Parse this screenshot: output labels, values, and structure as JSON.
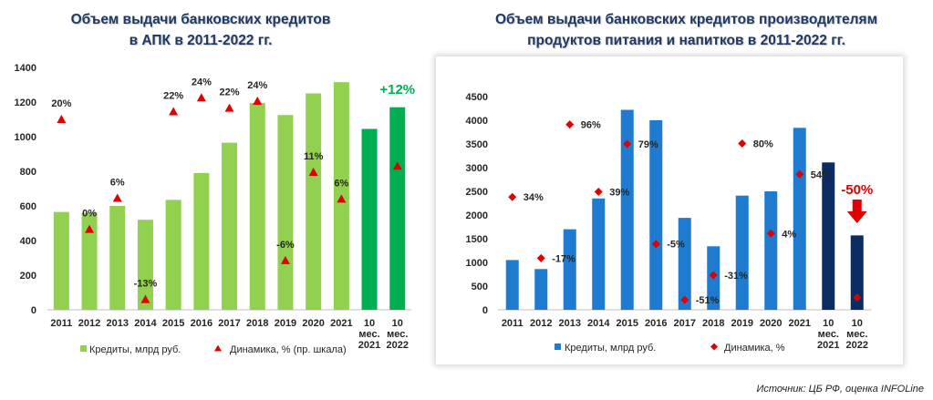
{
  "chart_data": [
    {
      "type": "bar",
      "title": "Объем выдачи банковских кредитов в АПК в 2011-2022 гг.",
      "title_lines": [
        "Объем выдачи банковских кредитов",
        "в АПК в 2011-2022 гг."
      ],
      "categories": [
        "2011",
        "2012",
        "2013",
        "2014",
        "2015",
        "2016",
        "2017",
        "2018",
        "2019",
        "2020",
        "2021",
        "10 мес. 2021",
        "10 мес. 2022"
      ],
      "category_lines": [
        [
          "2011"
        ],
        [
          "2012"
        ],
        [
          "2013"
        ],
        [
          "2014"
        ],
        [
          "2015"
        ],
        [
          "2016"
        ],
        [
          "2017"
        ],
        [
          "2018"
        ],
        [
          "2019"
        ],
        [
          "2020"
        ],
        [
          "2021"
        ],
        [
          "10",
          "мес.",
          "2021"
        ],
        [
          "10",
          "мес.",
          "2022"
        ]
      ],
      "series": [
        {
          "name": "Кредиты, млрд руб.",
          "type": "bar",
          "axis": "left",
          "values": [
            565,
            560,
            600,
            520,
            635,
            790,
            965,
            1195,
            1125,
            1250,
            1315,
            1045,
            1170
          ],
          "colors": [
            "#92d050",
            "#92d050",
            "#92d050",
            "#92d050",
            "#92d050",
            "#92d050",
            "#92d050",
            "#92d050",
            "#92d050",
            "#92d050",
            "#92d050",
            "#00b050",
            "#00b050"
          ]
        },
        {
          "name": "Динамика, % (пр. шкала)",
          "type": "scatter",
          "marker": "triangle",
          "color": "#e00000",
          "axis": "right",
          "values": [
            1100,
            465,
            645,
            60,
            1145,
            1225,
            1165,
            1205,
            285,
            795,
            640,
            null,
            830
          ],
          "labels": [
            "20%",
            "0%",
            "6%",
            "-13%",
            "22%",
            "24%",
            "22%",
            "24%",
            "-6%",
            "11%",
            "6%",
            "",
            ""
          ]
        }
      ],
      "annotation": {
        "text": "+12%",
        "color": "#00b050"
      },
      "ylim": [
        0,
        1400
      ],
      "yticks": [
        "0",
        "200",
        "400",
        "600",
        "800",
        "1000",
        "1200",
        "1400"
      ],
      "grid": false,
      "legend": "bottom"
    },
    {
      "type": "bar",
      "title": "Объем выдачи банковских кредитов производителям продуктов питания и напитков в 2011-2022 гг.",
      "title_lines": [
        "Объем выдачи банковских кредитов производителям",
        "продуктов питания и напитков в 2011-2022 гг."
      ],
      "categories": [
        "2011",
        "2012",
        "2013",
        "2014",
        "2015",
        "2016",
        "2017",
        "2018",
        "2019",
        "2020",
        "2021",
        "10 мес. 2021",
        "10 мес. 2022"
      ],
      "category_lines": [
        [
          "2011"
        ],
        [
          "2012"
        ],
        [
          "2013"
        ],
        [
          "2014"
        ],
        [
          "2015"
        ],
        [
          "2016"
        ],
        [
          "2017"
        ],
        [
          "2018"
        ],
        [
          "2019"
        ],
        [
          "2020"
        ],
        [
          "2021"
        ],
        [
          "10",
          "мес.",
          "2021"
        ],
        [
          "10",
          "мес.",
          "2022"
        ]
      ],
      "series": [
        {
          "name": "Кредиты, млрд руб.",
          "type": "bar",
          "axis": "left",
          "values": [
            1050,
            860,
            1700,
            2350,
            4220,
            4000,
            1940,
            1340,
            2410,
            2500,
            3840,
            3110,
            1570
          ],
          "colors": [
            "#1f7bd0",
            "#1f7bd0",
            "#1f7bd0",
            "#1f7bd0",
            "#1f7bd0",
            "#1f7bd0",
            "#1f7bd0",
            "#1f7bd0",
            "#1f7bd0",
            "#1f7bd0",
            "#1f7bd0",
            "#0d2b63",
            "#0d2b63"
          ]
        },
        {
          "name": "Динамика, %",
          "type": "scatter",
          "marker": "diamond",
          "color": "#e00000",
          "axis": "right",
          "values": [
            2380,
            1090,
            3910,
            2490,
            3500,
            1390,
            210,
            730,
            3510,
            1610,
            2860,
            null,
            260
          ],
          "labels": [
            "34%",
            "-17%",
            "96%",
            "39%",
            "79%",
            "-5%",
            "-51%",
            "-31%",
            "80%",
            "4%",
            "54%",
            "",
            ""
          ]
        }
      ],
      "annotation": {
        "text": "-50%",
        "color": "#e00000"
      },
      "ylim": [
        0,
        4500
      ],
      "yticks": [
        "0",
        "500",
        "1000",
        "1500",
        "2000",
        "2500",
        "3000",
        "3500",
        "4000",
        "4500"
      ],
      "grid": false,
      "legend": "bottom"
    }
  ],
  "source": "Источник: ЦБ РФ, оценка INFOLine"
}
